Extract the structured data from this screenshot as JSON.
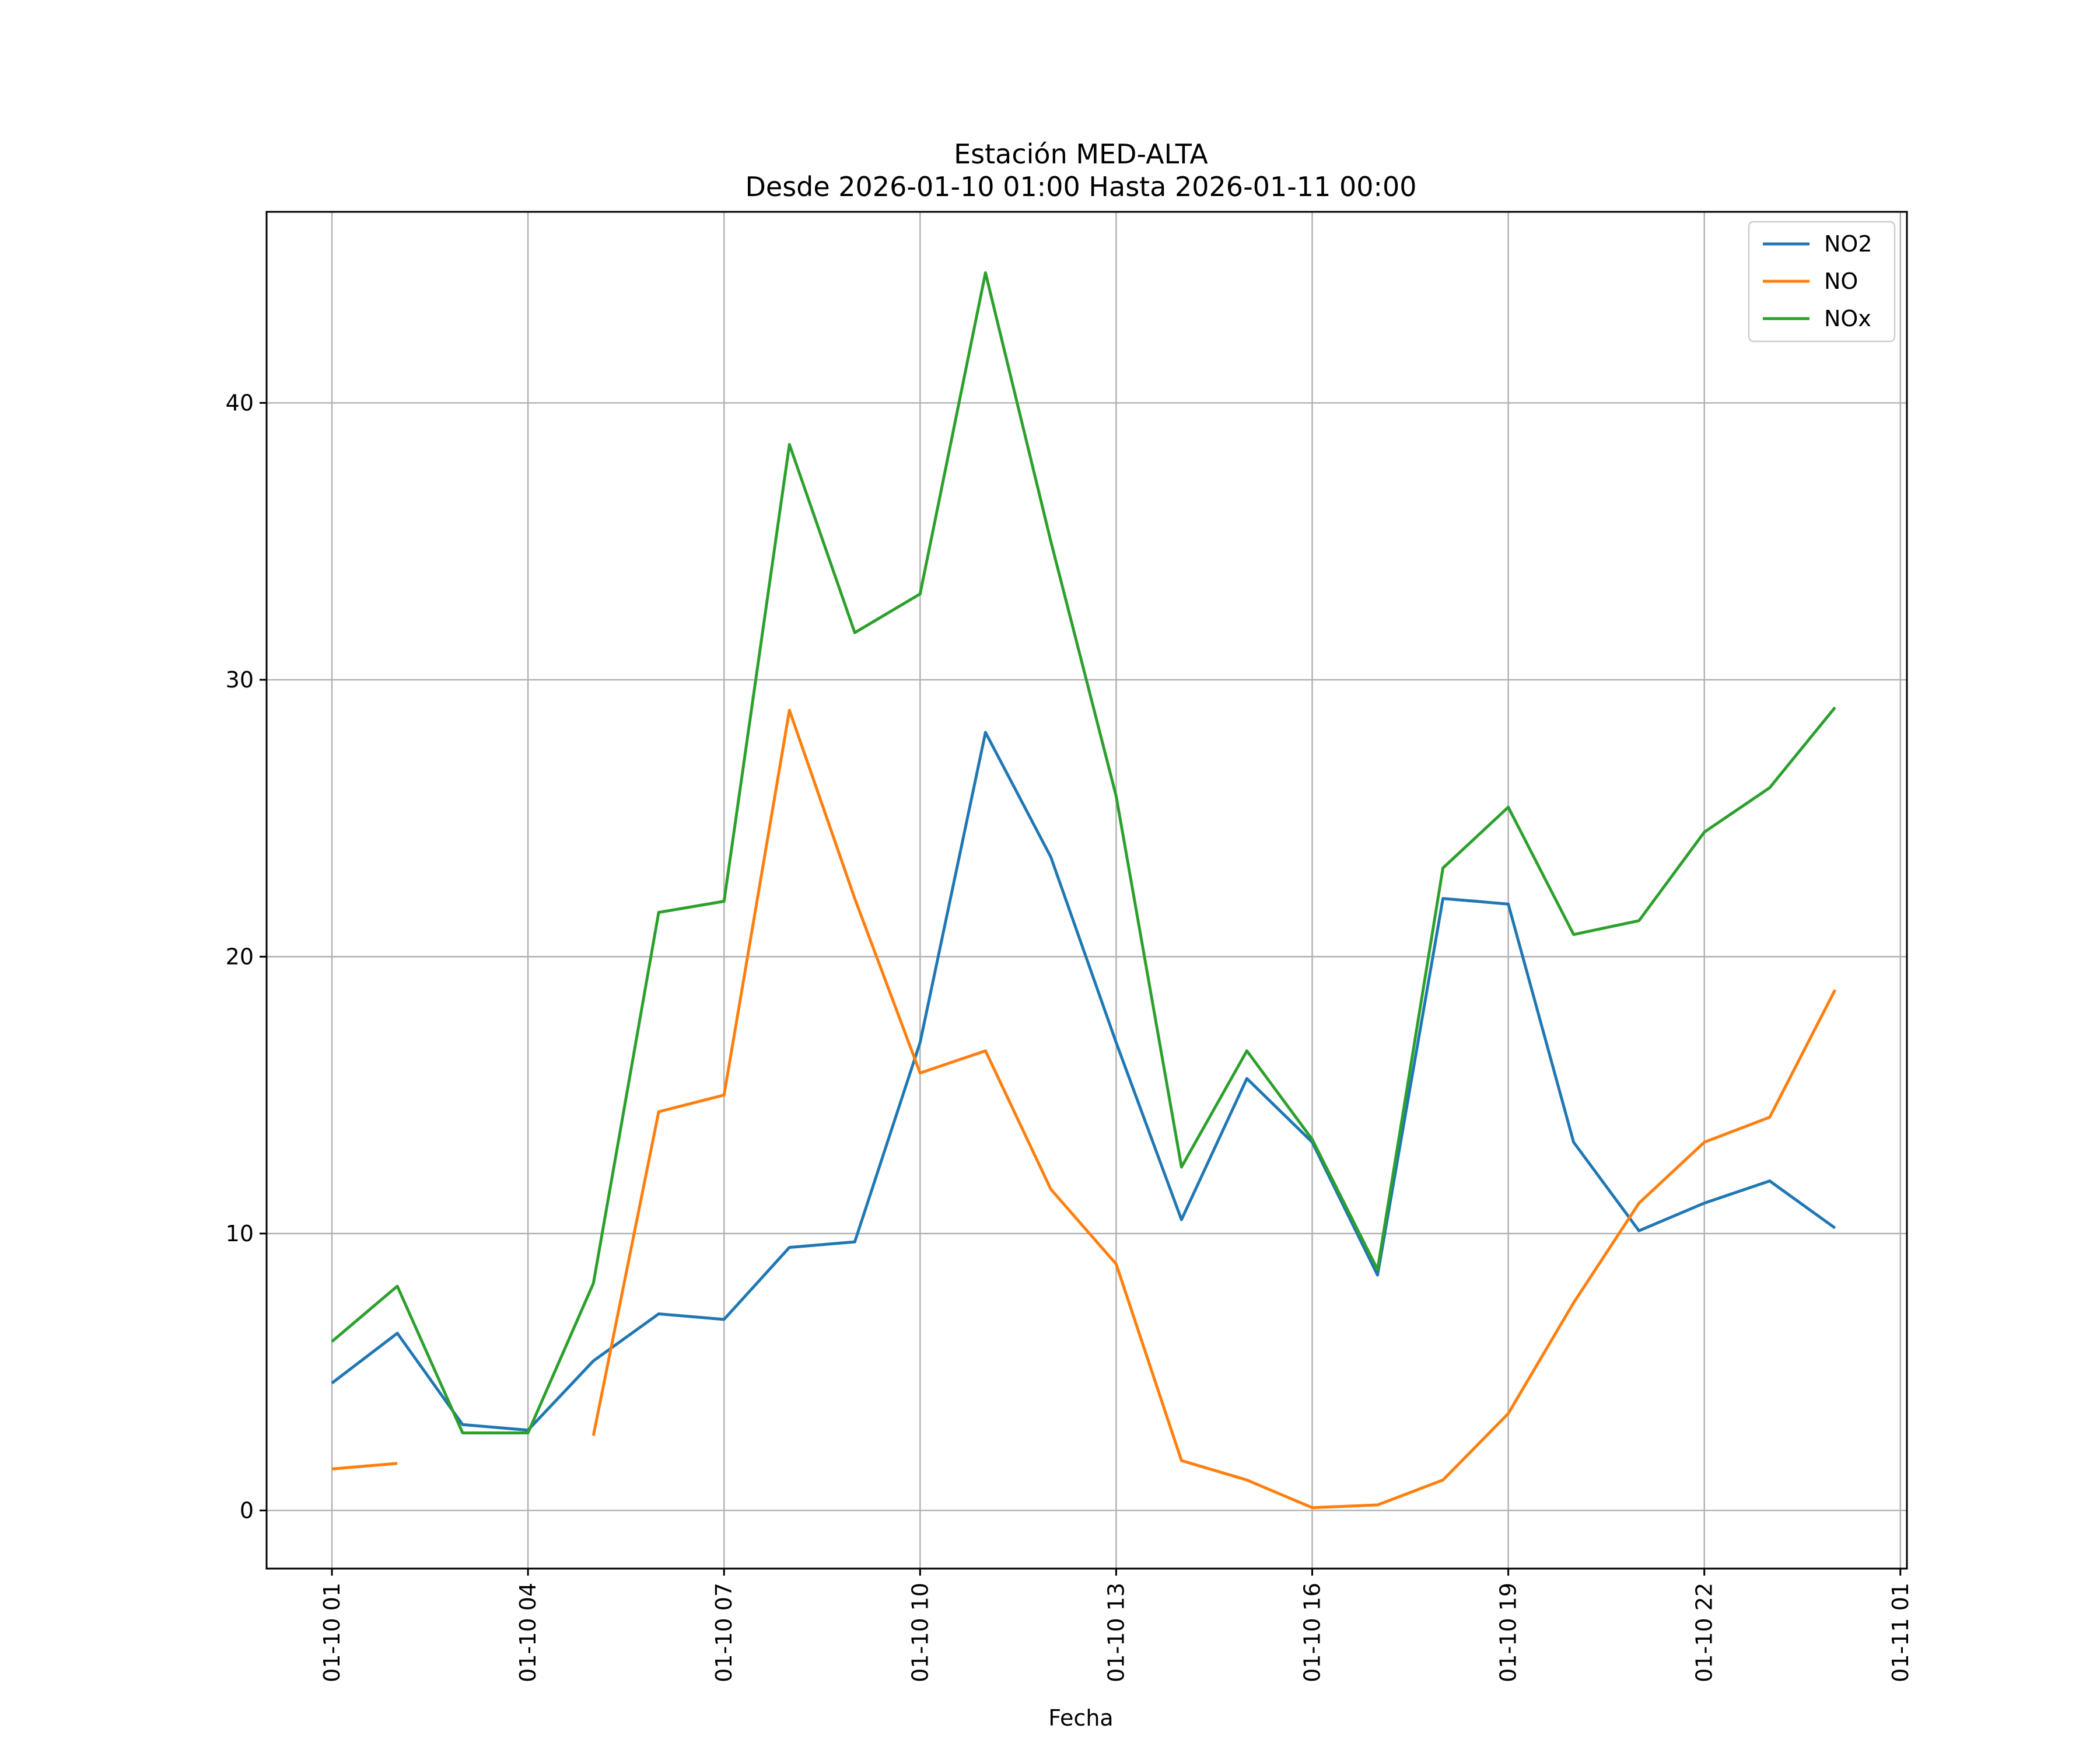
{
  "chart_data": {
    "type": "line",
    "title": "Estación MED-ALTA",
    "subtitle": "Desde 2026-01-10 01:00 Hasta 2026-01-11 00:00",
    "xlabel": "Fecha",
    "ylabel": "",
    "x": [
      "2026-01-10 01:00",
      "2026-01-10 02:00",
      "2026-01-10 03:00",
      "2026-01-10 04:00",
      "2026-01-10 05:00",
      "2026-01-10 06:00",
      "2026-01-10 07:00",
      "2026-01-10 08:00",
      "2026-01-10 09:00",
      "2026-01-10 10:00",
      "2026-01-10 11:00",
      "2026-01-10 12:00",
      "2026-01-10 13:00",
      "2026-01-10 14:00",
      "2026-01-10 15:00",
      "2026-01-10 16:00",
      "2026-01-10 17:00",
      "2026-01-10 18:00",
      "2026-01-10 19:00",
      "2026-01-10 20:00",
      "2026-01-10 21:00",
      "2026-01-10 22:00",
      "2026-01-10 23:00",
      "2026-01-11 00:00"
    ],
    "xlim": [
      "2026-01-10 00:00",
      "2026-01-11 01:06"
    ],
    "x_ticks": [
      {
        "value": "2026-01-10 01:00",
        "label": "01-10 01"
      },
      {
        "value": "2026-01-10 04:00",
        "label": "01-10 04"
      },
      {
        "value": "2026-01-10 07:00",
        "label": "01-10 07"
      },
      {
        "value": "2026-01-10 10:00",
        "label": "01-10 10"
      },
      {
        "value": "2026-01-10 13:00",
        "label": "01-10 13"
      },
      {
        "value": "2026-01-10 16:00",
        "label": "01-10 16"
      },
      {
        "value": "2026-01-10 19:00",
        "label": "01-10 19"
      },
      {
        "value": "2026-01-10 22:00",
        "label": "01-10 22"
      },
      {
        "value": "2026-01-11 01:00",
        "label": "01-11 01"
      }
    ],
    "ylim": [
      -2.1,
      46.9
    ],
    "y_ticks": [
      0,
      10,
      20,
      30,
      40
    ],
    "grid": true,
    "legend_position": "top-right",
    "series": [
      {
        "name": "NO2",
        "color": "#1f77b4",
        "values": [
          4.6,
          6.4,
          3.1,
          2.9,
          5.4,
          7.1,
          6.9,
          9.5,
          9.7,
          16.9,
          28.1,
          23.6,
          16.9,
          10.5,
          15.6,
          13.3,
          8.5,
          22.1,
          21.9,
          13.3,
          10.1,
          11.1,
          11.9,
          10.2
        ]
      },
      {
        "name": "NO",
        "color": "#ff7f0e",
        "values": [
          1.5,
          1.7,
          null,
          null,
          2.7,
          14.4,
          15.0,
          28.9,
          22.1,
          15.8,
          16.6,
          11.6,
          8.9,
          1.8,
          1.1,
          0.1,
          0.2,
          1.1,
          3.5,
          7.5,
          11.1,
          13.3,
          14.2,
          18.8
        ]
      },
      {
        "name": "NOx",
        "color": "#2ca02c",
        "values": [
          6.1,
          8.1,
          2.8,
          2.8,
          8.2,
          21.6,
          22.0,
          38.5,
          31.7,
          33.1,
          44.7,
          35.0,
          25.8,
          12.4,
          16.6,
          13.4,
          8.7,
          23.2,
          25.4,
          20.8,
          21.3,
          24.5,
          26.1,
          29.0
        ]
      }
    ]
  }
}
